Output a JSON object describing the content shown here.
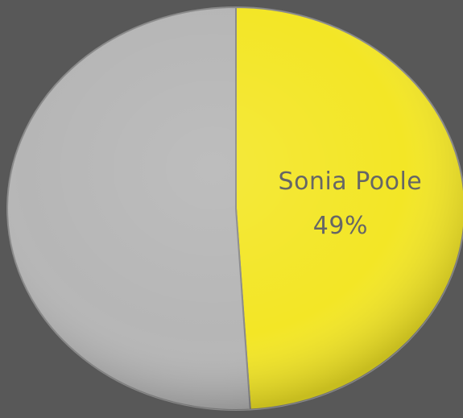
{
  "chart_data": {
    "type": "pie",
    "slices": [
      {
        "label": "Sonia Poole",
        "value": 49,
        "value_label": "49%",
        "color": "#F3E626",
        "show_label": true
      },
      {
        "label": "",
        "value": 51,
        "value_label": "",
        "color": "#B6B6B6",
        "show_label": false
      }
    ],
    "start_angle_deg": 0,
    "direction": "clockwise",
    "colors": {
      "background": "#585858",
      "label_text": "#666666",
      "slice_border": "#8A8A8A"
    }
  }
}
